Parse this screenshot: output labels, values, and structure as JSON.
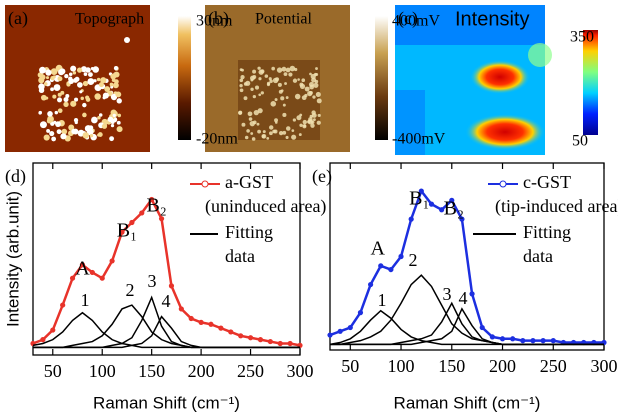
{
  "image_panels": [
    {
      "label": "(a)",
      "title": "Topograph",
      "colorbar_max": "30nm",
      "colorbar_min": "-20nm"
    },
    {
      "label": "(b)",
      "title": "Potential",
      "colorbar_max": "400mV",
      "colorbar_min": "-400mV"
    },
    {
      "label": "(c)",
      "title": "Intensity",
      "colorbar_max": "350",
      "colorbar_min": "50"
    }
  ],
  "chart_data": [
    {
      "type": "line",
      "panel_label": "(d)",
      "xlabel": "Raman Shift (cm⁻¹)",
      "ylabel": "Intensity (arb.unit)",
      "xlim": [
        30,
        300
      ],
      "xticks": [
        50,
        100,
        150,
        200,
        250,
        300
      ],
      "ylim": [
        0,
        100
      ],
      "annotations": [
        "A",
        "B₁",
        "B₂"
      ],
      "legend_note": "(uninduced area)",
      "fit_legend": [
        "Fitting",
        "data"
      ],
      "x": [
        30,
        40,
        50,
        60,
        70,
        80,
        90,
        100,
        110,
        120,
        130,
        140,
        150,
        160,
        170,
        180,
        190,
        200,
        210,
        220,
        230,
        240,
        250,
        260,
        270,
        280,
        290,
        300
      ],
      "series": [
        {
          "name": "a-GST",
          "color": "#e8332a",
          "values": [
            6,
            8,
            13,
            26,
            40,
            47,
            43,
            40,
            49,
            64,
            69,
            74,
            81,
            71,
            36,
            24,
            19,
            17,
            16,
            14,
            12,
            10,
            9,
            8,
            7,
            6,
            6,
            5
          ]
        },
        {
          "name": "1",
          "color": "#000000",
          "values": [
            5,
            6,
            8,
            12,
            18,
            22,
            18,
            12,
            8,
            6,
            5,
            4,
            4,
            4,
            4,
            4,
            4,
            4,
            4,
            4,
            4,
            4,
            4,
            4,
            4,
            4,
            4,
            4
          ]
        },
        {
          "name": "2",
          "color": "#000000",
          "values": [
            4,
            4,
            4,
            4,
            5,
            6,
            7,
            10,
            16,
            24,
            26,
            20,
            12,
            8,
            6,
            5,
            4,
            4,
            4,
            4,
            4,
            4,
            4,
            4,
            4,
            4,
            4,
            4
          ]
        },
        {
          "name": "3",
          "color": "#000000",
          "values": [
            4,
            4,
            4,
            4,
            4,
            4,
            4,
            4,
            5,
            6,
            9,
            18,
            30,
            15,
            7,
            5,
            4,
            4,
            4,
            4,
            4,
            4,
            4,
            4,
            4,
            4,
            4,
            4
          ]
        },
        {
          "name": "4",
          "color": "#000000",
          "values": [
            4,
            4,
            4,
            4,
            4,
            4,
            4,
            4,
            4,
            4,
            5,
            6,
            10,
            20,
            14,
            7,
            5,
            4,
            4,
            4,
            4,
            4,
            4,
            4,
            4,
            4,
            4,
            4
          ]
        }
      ]
    },
    {
      "type": "line",
      "panel_label": "(e)",
      "xlabel": "Raman Shift (cm⁻¹)",
      "xlim": [
        30,
        300
      ],
      "xticks": [
        50,
        100,
        150,
        200,
        250,
        300
      ],
      "ylim": [
        0,
        100
      ],
      "annotations": [
        "A",
        "B₁",
        "B₂"
      ],
      "legend_note": "(tip-induced area)",
      "fit_legend": [
        "Fitting",
        "data"
      ],
      "x": [
        30,
        40,
        50,
        60,
        70,
        80,
        90,
        100,
        110,
        120,
        130,
        140,
        150,
        160,
        170,
        180,
        190,
        200,
        210,
        220,
        230,
        240,
        250,
        260,
        270,
        280,
        290,
        300
      ],
      "series": [
        {
          "name": "c-GST",
          "color": "#1c2fe0",
          "values": [
            8,
            10,
            12,
            20,
            35,
            45,
            43,
            50,
            70,
            85,
            78,
            75,
            80,
            70,
            30,
            12,
            7,
            6,
            6,
            5,
            5,
            5,
            5,
            4,
            4,
            4,
            4,
            4
          ]
        },
        {
          "name": "1",
          "color": "#000000",
          "values": [
            3,
            4,
            6,
            10,
            16,
            21,
            17,
            11,
            7,
            5,
            4,
            3,
            3,
            3,
            3,
            3,
            3,
            3,
            3,
            3,
            3,
            3,
            3,
            3,
            3,
            3,
            3,
            3
          ]
        },
        {
          "name": "2",
          "color": "#000000",
          "values": [
            3,
            3,
            4,
            5,
            7,
            10,
            16,
            25,
            35,
            40,
            34,
            24,
            14,
            9,
            6,
            5,
            4,
            3,
            3,
            3,
            3,
            3,
            3,
            3,
            3,
            3,
            3,
            3
          ]
        },
        {
          "name": "3",
          "color": "#000000",
          "values": [
            3,
            3,
            3,
            3,
            3,
            3,
            3,
            4,
            5,
            6,
            8,
            15,
            25,
            14,
            7,
            5,
            4,
            3,
            3,
            3,
            3,
            3,
            3,
            3,
            3,
            3,
            3,
            3
          ]
        },
        {
          "name": "4",
          "color": "#000000",
          "values": [
            3,
            3,
            3,
            3,
            3,
            3,
            3,
            3,
            3,
            4,
            5,
            6,
            10,
            22,
            13,
            6,
            4,
            3,
            3,
            3,
            3,
            3,
            3,
            3,
            3,
            3,
            3,
            3
          ]
        }
      ]
    }
  ]
}
